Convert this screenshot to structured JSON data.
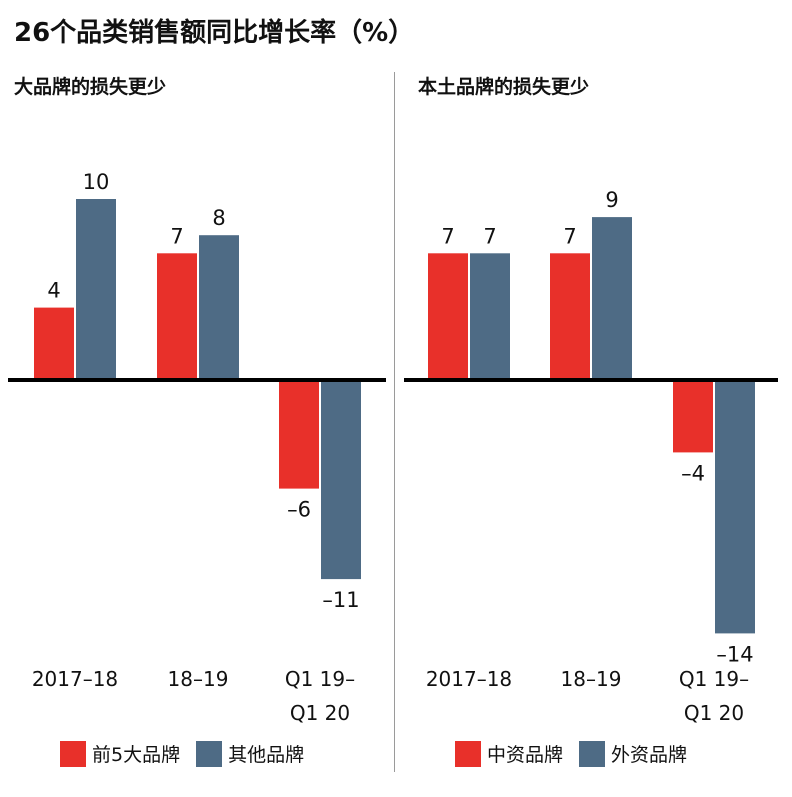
{
  "title": "26个品类销售额同比增长率（%）",
  "colors": {
    "red": "#E8302A",
    "slate": "#4E6B85",
    "axis": "#000000",
    "divider": "#9a9a9a"
  },
  "chart_data": [
    {
      "type": "bar",
      "title": "大品牌的损失更少",
      "categories": [
        [
          "2017–18"
        ],
        [
          "18–19"
        ],
        [
          "Q1 19–",
          "Q1 20"
        ]
      ],
      "series": [
        {
          "name": "前5大品牌",
          "values": [
            4,
            7,
            -6
          ],
          "labels": [
            "4",
            "7",
            "–6"
          ],
          "color": "#E8302A"
        },
        {
          "name": "其他品牌",
          "values": [
            10,
            8,
            -11
          ],
          "labels": [
            "10",
            "8",
            "–11"
          ],
          "color": "#4E6B85"
        }
      ],
      "ylim": [
        -14,
        10
      ],
      "grid": false,
      "legend": "bottom"
    },
    {
      "type": "bar",
      "title": "本土品牌的损失更少",
      "categories": [
        [
          "2017–18"
        ],
        [
          "18–19"
        ],
        [
          "Q1 19–",
          "Q1 20"
        ]
      ],
      "series": [
        {
          "name": "中资品牌",
          "values": [
            7,
            7,
            -4
          ],
          "labels": [
            "7",
            "7",
            "–4"
          ],
          "color": "#E8302A"
        },
        {
          "name": "外资品牌",
          "values": [
            7,
            9,
            -14
          ],
          "labels": [
            "7",
            "9",
            "–14"
          ],
          "color": "#4E6B85"
        }
      ],
      "ylim": [
        -14,
        10
      ],
      "grid": false,
      "legend": "bottom"
    }
  ]
}
